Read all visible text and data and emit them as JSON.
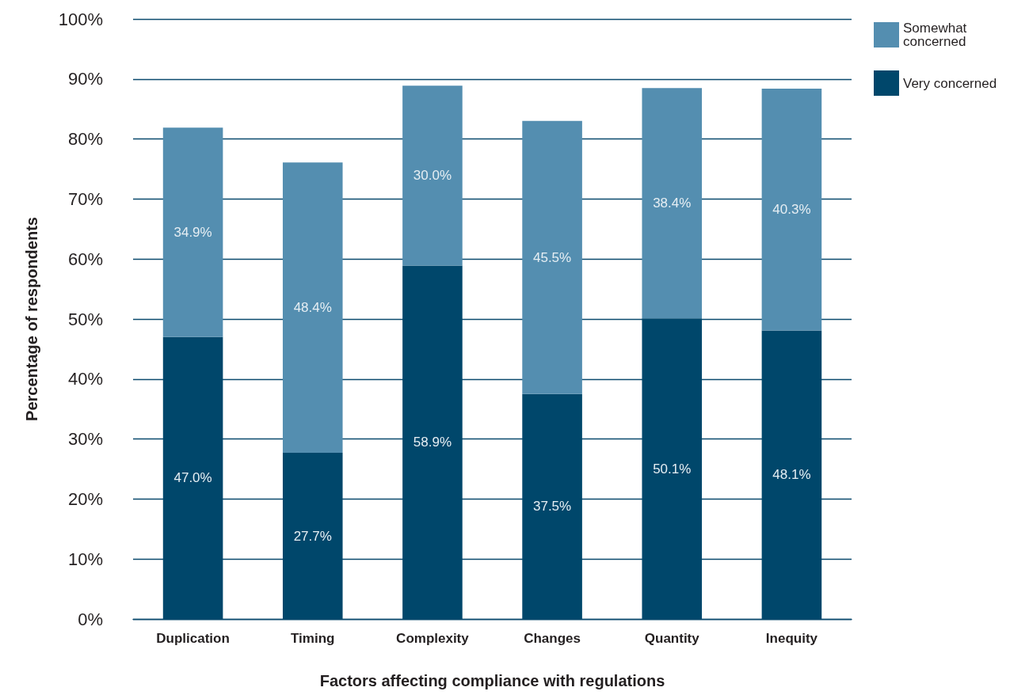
{
  "chart_data": {
    "type": "bar",
    "stacked": true,
    "xlabel": "Factors affecting compliance with regulations",
    "ylabel": "Percentage of respondents",
    "categories": [
      "Duplication",
      "Timing",
      "Complexity",
      "Changes",
      "Quantity",
      "Inequity"
    ],
    "series": [
      {
        "name": "Very concerned",
        "color": "#00476b",
        "values": [
          47.0,
          27.7,
          58.9,
          37.5,
          50.1,
          48.1
        ],
        "value_labels": [
          "47.0%",
          "27.7%",
          "58.9%",
          "37.5%",
          "50.1%",
          "48.1%"
        ]
      },
      {
        "name": "Somewhat concerned",
        "color": "#548eb0",
        "values": [
          34.9,
          48.4,
          30.0,
          45.5,
          38.4,
          40.3
        ],
        "value_labels": [
          "34.9%",
          "48.4%",
          "30.0%",
          "45.5%",
          "38.4%",
          "40.3%"
        ]
      }
    ],
    "ylim": [
      0,
      100
    ],
    "yticks": [
      {
        "value": 0,
        "label": "0%"
      },
      {
        "value": 10,
        "label": "10%"
      },
      {
        "value": 20,
        "label": "20%"
      },
      {
        "value": 30,
        "label": "30%"
      },
      {
        "value": 40,
        "label": "40%"
      },
      {
        "value": 50,
        "label": "50%"
      },
      {
        "value": 60,
        "label": "60%"
      },
      {
        "value": 70,
        "label": "70%"
      },
      {
        "value": 80,
        "label": "80%"
      },
      {
        "value": 90,
        "label": "90%"
      },
      {
        "value": 100,
        "label": "100%"
      }
    ],
    "grid": "y",
    "legend": "top right"
  }
}
